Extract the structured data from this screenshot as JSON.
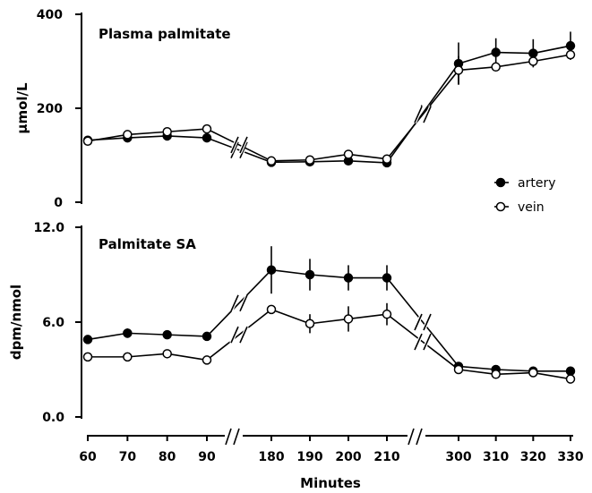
{
  "chart_data": [
    {
      "type": "line",
      "title": "Plasma palmitate",
      "ylabel": "µmol/L",
      "xlabel": "Minutes",
      "ylim": [
        0,
        400
      ],
      "yticks": [
        "0",
        "200",
        "400"
      ],
      "x": [
        60,
        70,
        80,
        90,
        180,
        190,
        200,
        210,
        300,
        310,
        320,
        330
      ],
      "series": [
        {
          "name": "artery",
          "marker": "filled",
          "values": [
            132,
            137,
            141,
            137,
            85,
            86,
            88,
            84,
            295,
            319,
            317,
            333
          ],
          "error": [
            8,
            0,
            0,
            0,
            0,
            0,
            0,
            0,
            45,
            30,
            30,
            30
          ]
        },
        {
          "name": "vein",
          "marker": "open",
          "values": [
            130,
            144,
            150,
            156,
            88,
            90,
            102,
            92,
            281,
            288,
            300,
            314
          ],
          "error": [
            0,
            0,
            0,
            0,
            0,
            0,
            0,
            0,
            30,
            0,
            0,
            0
          ]
        }
      ]
    },
    {
      "type": "line",
      "title": "Palmitate SA",
      "ylabel": "dpm/nmol",
      "xlabel": "Minutes",
      "ylim": [
        0,
        12
      ],
      "yticks": [
        "0.0",
        "6.0",
        "12.0"
      ],
      "x": [
        60,
        70,
        80,
        90,
        180,
        190,
        200,
        210,
        300,
        310,
        320,
        330
      ],
      "series": [
        {
          "name": "artery",
          "marker": "filled",
          "values": [
            4.9,
            5.3,
            5.2,
            5.1,
            9.3,
            9.0,
            8.8,
            8.8,
            3.2,
            3.0,
            2.9,
            2.9
          ],
          "error": [
            0,
            0.3,
            0,
            0,
            1.5,
            1.0,
            0.8,
            0.8,
            0,
            0,
            0,
            0
          ]
        },
        {
          "name": "vein",
          "marker": "open",
          "values": [
            3.8,
            3.8,
            4.0,
            3.6,
            6.8,
            5.9,
            6.2,
            6.5,
            3.0,
            2.7,
            2.8,
            2.4
          ],
          "error": [
            0,
            0,
            0,
            0,
            0,
            0.6,
            0.8,
            0.7,
            0,
            0,
            0,
            0
          ]
        }
      ]
    }
  ],
  "xticks": [
    "60",
    "70",
    "80",
    "90",
    "180",
    "190",
    "200",
    "210",
    "300",
    "310",
    "320",
    "330"
  ],
  "legend": {
    "artery": "artery",
    "vein": "vein"
  }
}
